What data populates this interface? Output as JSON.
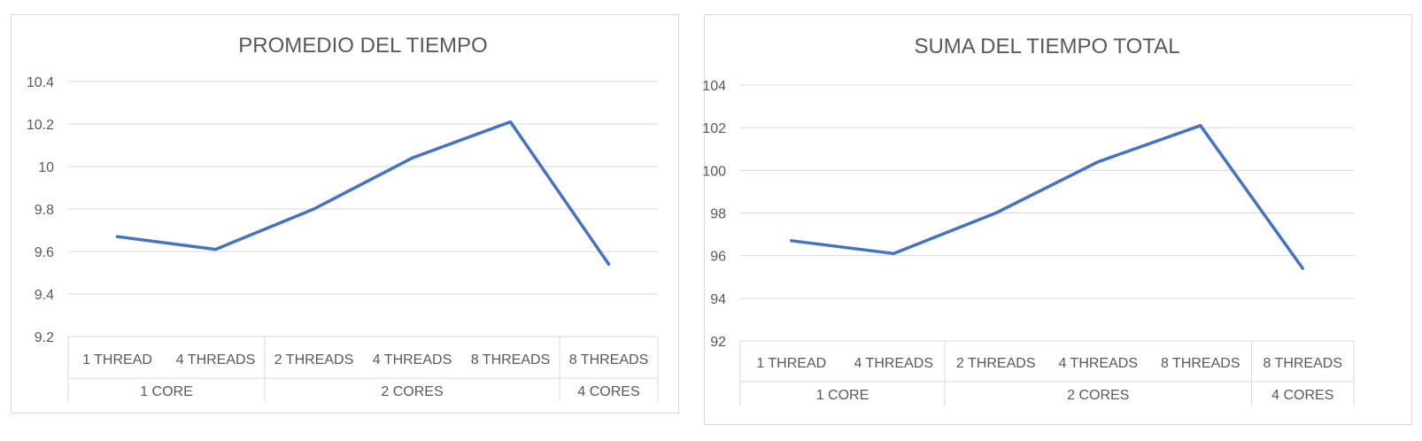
{
  "colors": {
    "series": "#4472c4",
    "grid": "#d9d9d9",
    "text": "#595959"
  },
  "chart_data": [
    {
      "type": "line",
      "title": "PROMEDIO DEL TIEMPO",
      "xlabel": "",
      "ylabel": "",
      "ylim": [
        9.2,
        10.4
      ],
      "yticks": [
        9.2,
        9.4,
        9.6,
        9.8,
        10,
        10.2,
        10.4
      ],
      "ytick_labels": [
        "9.2",
        "9.4",
        "9.6",
        "9.8",
        "10",
        "10.2",
        "10.4"
      ],
      "grid": true,
      "legend": "none",
      "categories": [
        "1 THREAD",
        "4 THREADS",
        "2 THREADS",
        "4 THREADS",
        "8 THREADS",
        "8 THREADS"
      ],
      "groups": [
        {
          "label": "1 CORE",
          "count": 2
        },
        {
          "label": "2 CORES",
          "count": 3
        },
        {
          "label": "4 CORES",
          "count": 1
        }
      ],
      "series": [
        {
          "values": [
            9.67,
            9.61,
            9.8,
            10.04,
            10.21,
            9.54
          ]
        }
      ]
    },
    {
      "type": "line",
      "title": "SUMA DEL TIEMPO TOTAL",
      "xlabel": "",
      "ylabel": "",
      "ylim": [
        92,
        104
      ],
      "yticks": [
        92,
        94,
        96,
        98,
        100,
        102,
        104
      ],
      "ytick_labels": [
        "92",
        "94",
        "96",
        "98",
        "100",
        "102",
        "104"
      ],
      "grid": true,
      "legend": "none",
      "categories": [
        "1 THREAD",
        "4 THREADS",
        "2 THREADS",
        "4 THREADS",
        "8 THREADS",
        "8 THREADS"
      ],
      "groups": [
        {
          "label": "1 CORE",
          "count": 2
        },
        {
          "label": "2 CORES",
          "count": 3
        },
        {
          "label": "4 CORES",
          "count": 1
        }
      ],
      "series": [
        {
          "values": [
            96.7,
            96.1,
            98,
            100.4,
            102.1,
            95.4
          ]
        }
      ]
    }
  ]
}
